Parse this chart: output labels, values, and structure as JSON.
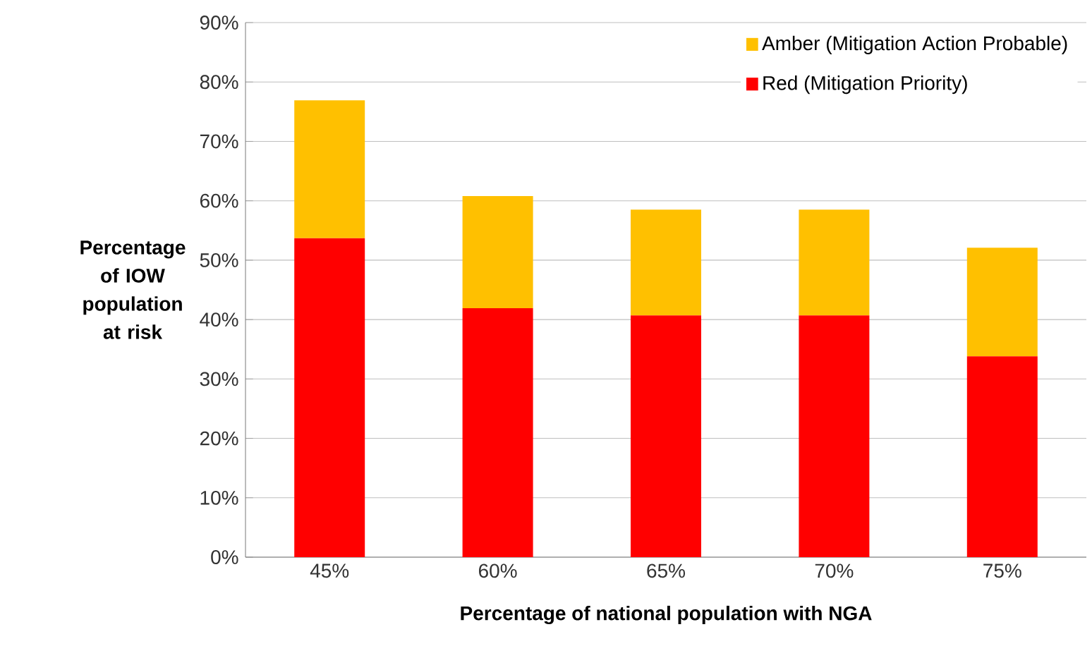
{
  "chart_data": {
    "type": "bar",
    "stacked": true,
    "xlabel": "Percentage of national population with NGA",
    "ylabel": "Percentage of IOW population at risk",
    "categories": [
      "45%",
      "60%",
      "65%",
      "70%",
      "75%"
    ],
    "series": [
      {
        "name": "Red (Mitigation Priority)",
        "color": "#ff0000",
        "values": [
          53.7,
          41.9,
          40.7,
          40.7,
          33.8
        ]
      },
      {
        "name": "Amber (Mitigation Action Probable)",
        "color": "#ffc000",
        "values": [
          23.2,
          18.9,
          17.8,
          17.8,
          18.3
        ]
      }
    ],
    "ylim": [
      0,
      90
    ],
    "yticks": [
      {
        "value": 0,
        "label": "0%"
      },
      {
        "value": 10,
        "label": "10%"
      },
      {
        "value": 20,
        "label": "20%"
      },
      {
        "value": 30,
        "label": "30%"
      },
      {
        "value": 40,
        "label": "40%"
      },
      {
        "value": 50,
        "label": "50%"
      },
      {
        "value": 60,
        "label": "60%"
      },
      {
        "value": 70,
        "label": "70%"
      },
      {
        "value": 80,
        "label": "80%"
      },
      {
        "value": 90,
        "label": "90%"
      }
    ],
    "grid": "y",
    "legend": "top right"
  }
}
